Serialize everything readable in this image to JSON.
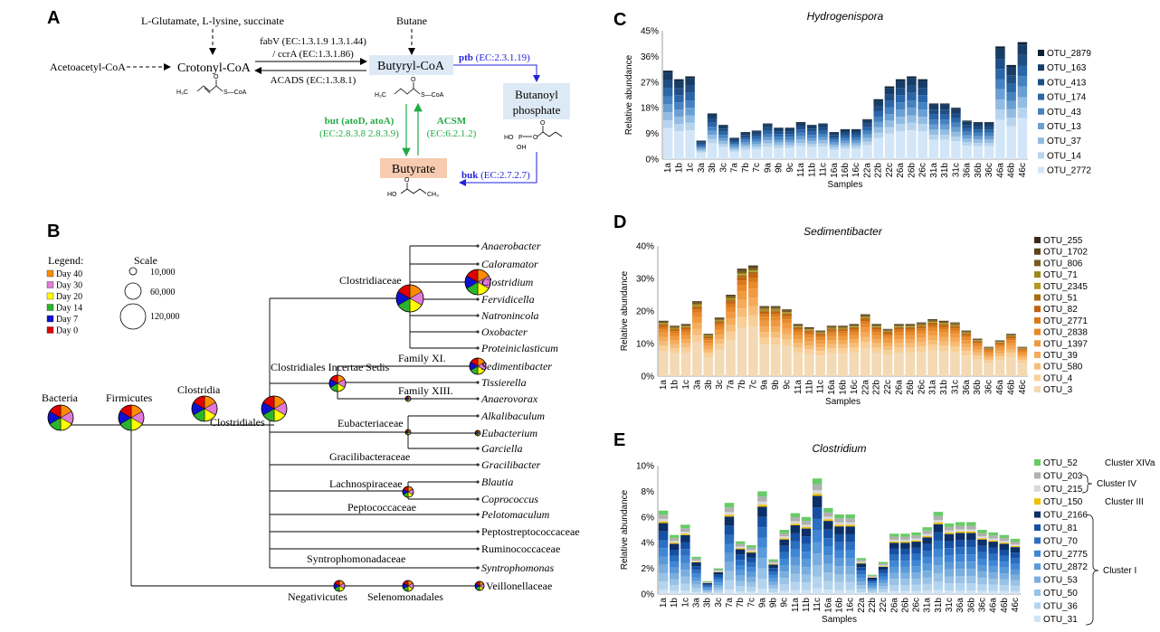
{
  "colors": {
    "black": "#000000",
    "blue": "#2222dd",
    "green": "#22aa44",
    "butyryl_box": "#dde9f5",
    "butanoyl_box": "#dde9f5",
    "butyrate_box": "#f6cbb0",
    "day40": "#ff8c00",
    "day30": "#e07ad6",
    "day20": "#ffff00",
    "day14": "#2cb52c",
    "day7": "#1010d0",
    "day0": "#e00000"
  },
  "panelA": {
    "label": "A",
    "substrates": "L-Glutamate, L-lysine, succinate",
    "butane": "Butane",
    "acetoacetyl": "Acetoacetyl-CoA",
    "crotonyl": "Crotonyl-CoA",
    "butyryl": "Butyryl-CoA",
    "butanoyl_line1": "Butanoyl",
    "butanoyl_line2": "phosphate",
    "butyrate": "Butyrate",
    "fabv_line1": "fabV (EC:1.3.1.9 1.3.1.44)",
    "fabv_line2": "/ ccrA (EC:1.3.1.86)",
    "acads": "ACADS (EC:1.3.8.1)",
    "ptb_bold": "ptb",
    "ptb_ec": "(EC:2.3.1.19)",
    "buk_bold": "buk",
    "buk_ec": "(EC:2.7.2.7)",
    "but_line1": "but (atoD, atoA)",
    "but_line2": "(EC:2.8.3.8 2.8.3.9)",
    "acsm_line1": "ACSM",
    "acsm_line2": "(EC:6.2.1.2)",
    "chem_h3c": "H₃C",
    "chem_scoa": "S—CoA",
    "chem_oh": "OH",
    "chem_o": "O",
    "chem_ho": "HO",
    "chem_p": "P",
    "chem_ch3": "CH₃"
  },
  "panelB": {
    "label": "B",
    "legend_title": "Legend:",
    "legend": [
      "Day 40",
      "Day 30",
      "Day 20",
      "Day 14",
      "Day 7",
      "Day 0"
    ],
    "scale_title": "Scale",
    "scale": [
      "10,000",
      "60,000",
      "120,000"
    ],
    "nodes": {
      "bacteria": "Bacteria",
      "firmicutes": "Firmicutes",
      "clostridia": "Clostridia",
      "clostridiales": "Clostridiales",
      "clostridiaceae": "Clostridiaceae",
      "incertae": "Clostridiales Incertae Sedis",
      "family11": "Family XI.",
      "family13": "Family XIII.",
      "eubacteriaceae": "Eubacteriaceae",
      "gracilibacteraceae": "Gracilibacteraceae",
      "lachnospiraceae": "Lachnospiraceae",
      "peptococcaceae": "Peptococcaceae",
      "syntrophomonadaceae": "Syntrophomonadaceae",
      "negativicutes": "Negativicutes",
      "selenomonadales": "Selenomonadales",
      "veillonellaceae": "Veillonellaceae"
    },
    "leaves": [
      {
        "label": "Anaerobacter",
        "italic": true
      },
      {
        "label": "Caloramator",
        "italic": true
      },
      {
        "label": "Clostridium",
        "italic": true
      },
      {
        "label": "Fervidicella",
        "italic": true
      },
      {
        "label": "Natronincola",
        "italic": true
      },
      {
        "label": "Oxobacter",
        "italic": true
      },
      {
        "label": "Proteiniclasticum",
        "italic": true
      },
      {
        "label": "Sedimentibacter",
        "italic": true
      },
      {
        "label": "Tissierella",
        "italic": true
      },
      {
        "label": "Anaerovorax",
        "italic": true
      },
      {
        "label": "Alkalibaculum",
        "italic": true
      },
      {
        "label": "Eubacterium",
        "italic": true
      },
      {
        "label": "Garciella",
        "italic": true
      },
      {
        "label": "Gracilibacter",
        "italic": true
      },
      {
        "label": "Blautia",
        "italic": true
      },
      {
        "label": "Coprococcus",
        "italic": true
      },
      {
        "label": "Pelotomaculum",
        "italic": true
      },
      {
        "label": "Peptostreptococcaceae",
        "italic": false
      },
      {
        "label": "Ruminococcaceae",
        "italic": false
      },
      {
        "label": "Syntrophomonas",
        "italic": true
      }
    ]
  },
  "chart_data": [
    {
      "type": "bar",
      "stacked": true,
      "panel": "C",
      "title": "Hydrogenispora",
      "xlabel": "Samples",
      "ylabel": "Relative abundance",
      "ylim": [
        0,
        45
      ],
      "yticks": [
        "0%",
        "9%",
        "18%",
        "27%",
        "36%",
        "45%"
      ],
      "categories": [
        "1a",
        "1b",
        "1c",
        "3a",
        "3b",
        "3c",
        "7a",
        "7b",
        "7c",
        "9a",
        "9b",
        "9c",
        "11a",
        "11b",
        "11c",
        "16a",
        "16b",
        "16c",
        "22a",
        "22b",
        "22c",
        "26a",
        "26b",
        "26c",
        "31a",
        "31b",
        "31c",
        "36a",
        "36b",
        "36c",
        "46a",
        "46b",
        "46c"
      ],
      "totals": [
        31,
        28,
        29,
        6.5,
        16,
        12,
        7.5,
        9.5,
        10,
        12.5,
        11,
        11,
        13,
        12,
        12.5,
        9.5,
        10.5,
        10.5,
        14,
        21,
        25.5,
        28,
        29,
        28,
        19.5,
        19.5,
        18,
        13.5,
        13,
        13,
        39.5,
        33,
        41
      ],
      "series": [
        {
          "name": "OTU_2879",
          "color": "#0d1f33",
          "share": 0.02
        },
        {
          "name": "OTU_163",
          "color": "#173d66",
          "share": 0.09
        },
        {
          "name": "OTU_413",
          "color": "#1f4e85",
          "share": 0.09
        },
        {
          "name": "OTU_174",
          "color": "#2a66a8",
          "share": 0.09
        },
        {
          "name": "OTU_43",
          "color": "#4682c0",
          "share": 0.09
        },
        {
          "name": "OTU_13",
          "color": "#6a9fd3",
          "share": 0.09
        },
        {
          "name": "OTU_37",
          "color": "#93bce3",
          "share": 0.09
        },
        {
          "name": "OTU_14",
          "color": "#b7d4ee",
          "share": 0.09
        },
        {
          "name": "OTU_2772",
          "color": "#d3e6f7",
          "share": 0.35
        }
      ]
    },
    {
      "type": "bar",
      "stacked": true,
      "panel": "D",
      "title": "Sedimentibacter",
      "xlabel": "Samples",
      "ylabel": "Relative abundance",
      "ylim": [
        0,
        40
      ],
      "yticks": [
        "0%",
        "10%",
        "20%",
        "30%",
        "40%"
      ],
      "categories": [
        "1a",
        "1b",
        "1c",
        "3a",
        "3b",
        "3c",
        "7a",
        "7b",
        "7c",
        "9a",
        "9b",
        "9c",
        "11a",
        "11b",
        "11c",
        "16a",
        "16b",
        "16c",
        "22a",
        "22b",
        "22c",
        "26a",
        "26b",
        "26c",
        "31a",
        "31b",
        "31c",
        "36a",
        "36b",
        "36c",
        "46a",
        "46b",
        "46c"
      ],
      "totals": [
        17,
        15.5,
        16,
        23,
        13,
        18,
        25,
        33,
        34,
        21.5,
        21.5,
        20.5,
        16,
        15,
        14,
        15.5,
        15.5,
        16,
        19,
        16,
        14.5,
        16,
        16,
        16.5,
        17.5,
        17,
        16.5,
        14,
        11.5,
        9,
        11,
        13,
        9
      ],
      "series": [
        {
          "name": "OTU_255",
          "color": "#3b2a12",
          "share": 0.01
        },
        {
          "name": "OTU_1702",
          "color": "#5c4318",
          "share": 0.01
        },
        {
          "name": "OTU_806",
          "color": "#7a5a1c",
          "share": 0.02
        },
        {
          "name": "OTU_71",
          "color": "#9a8a1a",
          "share": 0.01
        },
        {
          "name": "OTU_2345",
          "color": "#b09a22",
          "share": 0.01
        },
        {
          "name": "OTU_51",
          "color": "#a86a10",
          "share": 0.02
        },
        {
          "name": "OTU_82",
          "color": "#c2620e",
          "share": 0.03
        },
        {
          "name": "OTU_2771",
          "color": "#d9791a",
          "share": 0.04
        },
        {
          "name": "OTU_2838",
          "color": "#e8892a",
          "share": 0.06
        },
        {
          "name": "OTU_1397",
          "color": "#f09a40",
          "share": 0.08
        },
        {
          "name": "OTU_39",
          "color": "#f4ac5a",
          "share": 0.08
        },
        {
          "name": "OTU_580",
          "color": "#f6bd78",
          "share": 0.08
        },
        {
          "name": "OTU_4",
          "color": "#f8cf98",
          "share": 0.1
        },
        {
          "name": "OTU_3",
          "color": "#f3d9b4",
          "share": 0.45
        }
      ]
    },
    {
      "type": "bar",
      "stacked": true,
      "panel": "E",
      "title": "Clostridium",
      "xlabel": "Samples",
      "ylabel": "Relative abundance",
      "ylim": [
        0,
        10
      ],
      "yticks": [
        "0%",
        "2%",
        "4%",
        "6%",
        "8%",
        "10%"
      ],
      "categories": [
        "1a",
        "1b",
        "1c",
        "3a",
        "3b",
        "3c",
        "7a",
        "7b",
        "7c",
        "9a",
        "9b",
        "9c",
        "11a",
        "11b",
        "11c",
        "16a",
        "16b",
        "16c",
        "22a",
        "22b",
        "22c",
        "26a",
        "26b",
        "26c",
        "31a",
        "31b",
        "31c",
        "36a",
        "36b",
        "36c",
        "46a",
        "46b",
        "46c"
      ],
      "totals": [
        6.5,
        4.6,
        5.4,
        2.9,
        1.0,
        2.0,
        7.1,
        4.1,
        3.8,
        8.0,
        2.7,
        5.0,
        6.3,
        6.0,
        9.0,
        6.7,
        6.2,
        6.2,
        2.8,
        1.5,
        2.5,
        4.7,
        4.7,
        4.8,
        5.2,
        6.4,
        5.5,
        5.6,
        5.6,
        5.0,
        4.8,
        4.6,
        4.3
      ],
      "series": [
        {
          "name": "OTU_52",
          "color": "#66cc66",
          "share": 0.05
        },
        {
          "name": "OTU_203",
          "color": "#b0b0b0",
          "share": 0.05
        },
        {
          "name": "OTU_215",
          "color": "#d9d9d9",
          "share": 0.03
        },
        {
          "name": "OTU_150",
          "color": "#f0c000",
          "share": 0.02
        },
        {
          "name": "OTU_2166",
          "color": "#0b2f66",
          "share": 0.1
        },
        {
          "name": "OTU_81",
          "color": "#1650a3",
          "share": 0.1
        },
        {
          "name": "OTU_70",
          "color": "#2a6fc0",
          "share": 0.1
        },
        {
          "name": "OTU_2775",
          "color": "#3f86d4",
          "share": 0.1
        },
        {
          "name": "OTU_2872",
          "color": "#5a9ad9",
          "share": 0.1
        },
        {
          "name": "OTU_53",
          "color": "#7aaedf",
          "share": 0.1
        },
        {
          "name": "OTU_50",
          "color": "#98c2e6",
          "share": 0.1
        },
        {
          "name": "OTU_36",
          "color": "#b4d4ee",
          "share": 0.1
        },
        {
          "name": "OTU_31",
          "color": "#cfe3f5",
          "share": 0.05
        }
      ],
      "clusters": [
        {
          "label": "Cluster XIVa",
          "series": [
            "OTU_52"
          ]
        },
        {
          "label": "Cluster IV",
          "series": [
            "OTU_203",
            "OTU_215"
          ]
        },
        {
          "label": "Cluster III",
          "series": [
            "OTU_150"
          ]
        },
        {
          "label": "Cluster I",
          "series": [
            "OTU_2166",
            "OTU_81",
            "OTU_70",
            "OTU_2775",
            "OTU_2872",
            "OTU_53",
            "OTU_50",
            "OTU_36",
            "OTU_31"
          ]
        }
      ]
    }
  ],
  "panel_labels": {
    "C": "C",
    "D": "D",
    "E": "E"
  }
}
